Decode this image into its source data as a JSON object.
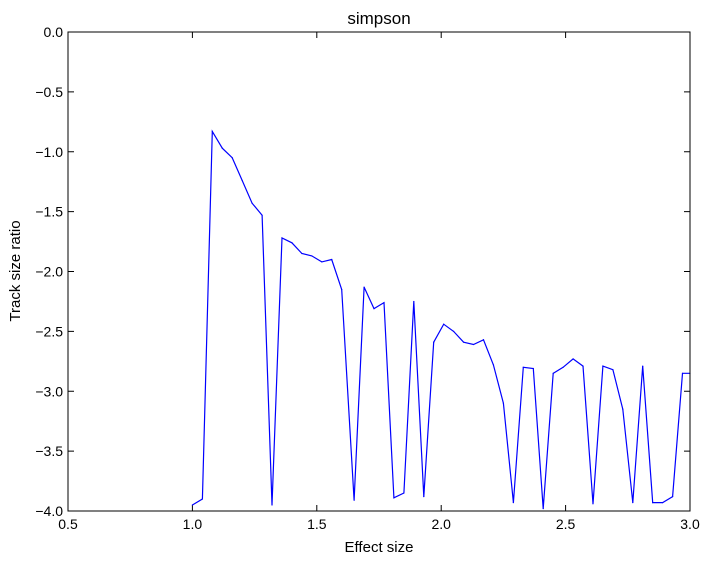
{
  "chart_data": {
    "type": "line",
    "title": "simpson",
    "xlabel": "Effect size",
    "ylabel": "Track size ratio",
    "xlim": [
      0.5,
      3.0
    ],
    "ylim": [
      -4.0,
      0.0
    ],
    "xticks": [
      0.5,
      1.0,
      1.5,
      2.0,
      2.5,
      3.0
    ],
    "xtick_labels": [
      "0.5",
      "1.0",
      "1.5",
      "2.0",
      "2.5",
      "3.0"
    ],
    "yticks": [
      0.0,
      -0.5,
      -1.0,
      -1.5,
      -2.0,
      -2.5,
      -3.0,
      -3.5,
      -4.0
    ],
    "ytick_labels": [
      "0.0",
      "−0.5",
      "−1.0",
      "−1.5",
      "−2.0",
      "−2.5",
      "−3.0",
      "−3.5",
      "−4.0"
    ],
    "grid": false,
    "series": [
      {
        "color": "#0000ff",
        "x": [
          1.0,
          1.04,
          1.08,
          1.12,
          1.16,
          1.2,
          1.24,
          1.28,
          1.32,
          1.36,
          1.4,
          1.44,
          1.48,
          1.52,
          1.56,
          1.6,
          1.65,
          1.69,
          1.73,
          1.77,
          1.81,
          1.85,
          1.89,
          1.93,
          1.97,
          2.01,
          2.05,
          2.09,
          2.13,
          2.17,
          2.21,
          2.25,
          2.29,
          2.33,
          2.37,
          2.41,
          2.45,
          2.49,
          2.53,
          2.57,
          2.61,
          2.65,
          2.69,
          2.73,
          2.77,
          2.81,
          2.85,
          2.89,
          2.93,
          2.97,
          3.0
        ],
        "y": [
          -3.95,
          -3.9,
          -0.83,
          -0.97,
          -1.05,
          -1.24,
          -1.43,
          -1.53,
          -3.95,
          -1.72,
          -1.76,
          -1.85,
          -1.87,
          -1.92,
          -1.9,
          -2.15,
          -3.91,
          -2.13,
          -2.31,
          -2.26,
          -3.89,
          -3.85,
          -2.25,
          -3.88,
          -2.59,
          -2.44,
          -2.5,
          -2.59,
          -2.61,
          -2.57,
          -2.78,
          -3.1,
          -3.93,
          -2.8,
          -2.81,
          -3.98,
          -2.85,
          -2.8,
          -2.73,
          -2.79,
          -3.94,
          -2.79,
          -2.82,
          -3.15,
          -3.93,
          -2.79,
          -3.93,
          -3.93,
          -3.88,
          -2.85,
          -2.85
        ]
      }
    ]
  }
}
